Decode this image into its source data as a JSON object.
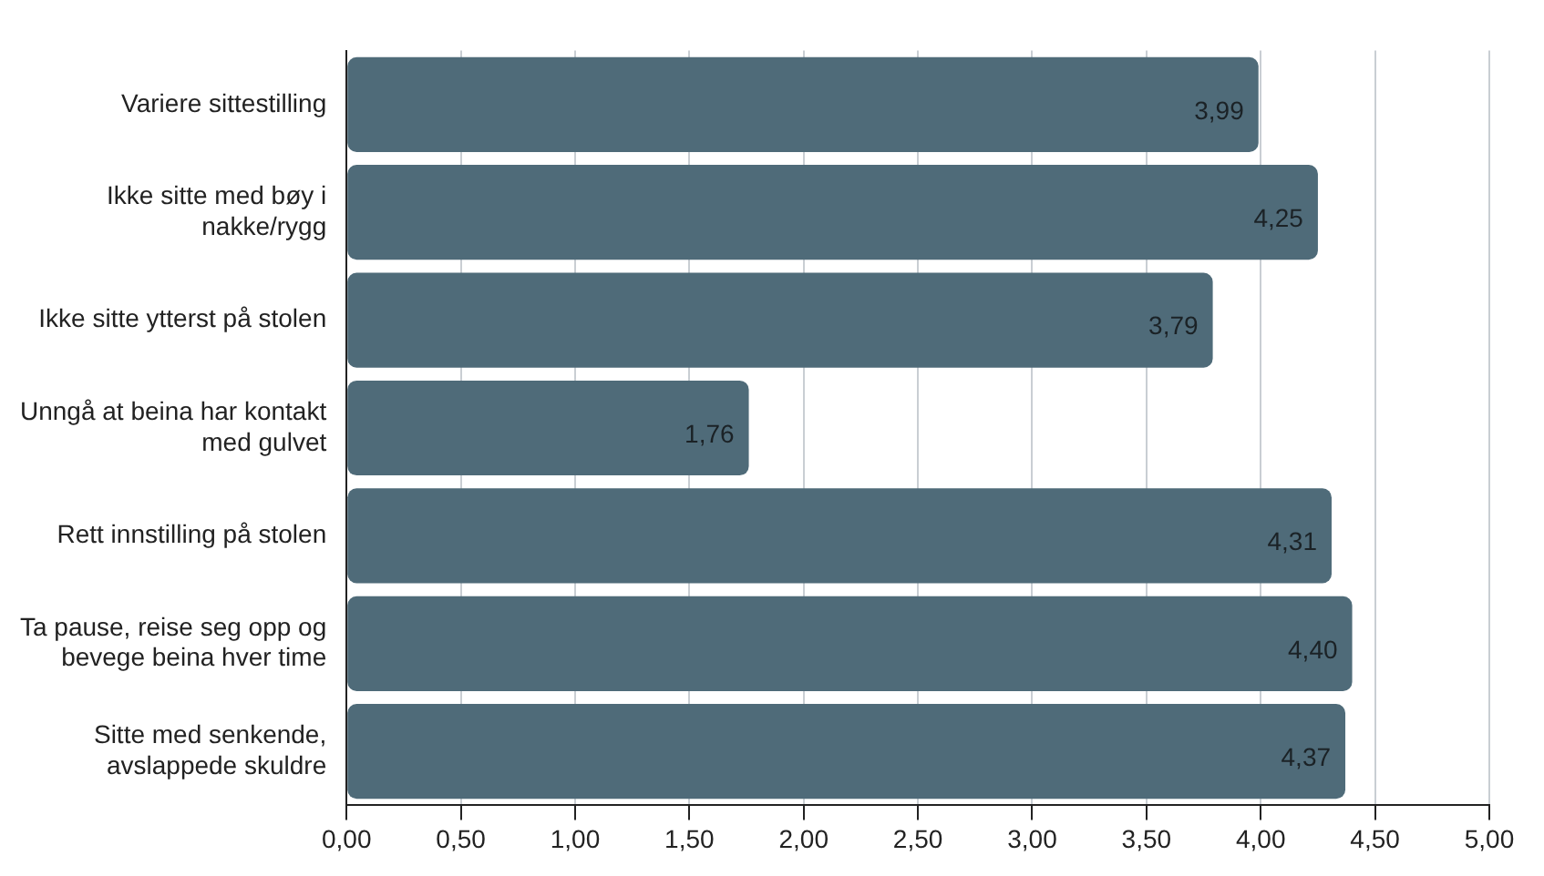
{
  "chart_data": {
    "type": "bar",
    "orientation": "horizontal",
    "categories": [
      "Variere sittestilling",
      "Ikke sitte med bøy i nakke/rygg",
      "Ikke sitte ytterst på stolen",
      "Unngå at beina har kontakt med gulvet",
      "Rett innstilling på stolen",
      "Ta pause, reise seg opp og bevege beina hver time",
      "Sitte med senkende, avslappede skuldre"
    ],
    "values": [
      3.99,
      4.25,
      3.79,
      1.76,
      4.31,
      4.4,
      4.37
    ],
    "value_labels": [
      "3,99",
      "4,25",
      "3,79",
      "1,76",
      "4,31",
      "4,40",
      "4,37"
    ],
    "color": "#4f6b79",
    "xlim": [
      0,
      5
    ],
    "xticks": [
      {
        "value": 0,
        "label": "0,00"
      },
      {
        "value": 0.5,
        "label": "0,50"
      },
      {
        "value": 1,
        "label": "1,00"
      },
      {
        "value": 1.5,
        "label": "1,50"
      },
      {
        "value": 2,
        "label": "2,00"
      },
      {
        "value": 2.5,
        "label": "2,50"
      },
      {
        "value": 3,
        "label": "3,00"
      },
      {
        "value": 3.5,
        "label": "3,50"
      },
      {
        "value": 4,
        "label": "4,00"
      },
      {
        "value": 4.5,
        "label": "4,50"
      },
      {
        "value": 5,
        "label": "5,00"
      }
    ],
    "grid": "x"
  }
}
